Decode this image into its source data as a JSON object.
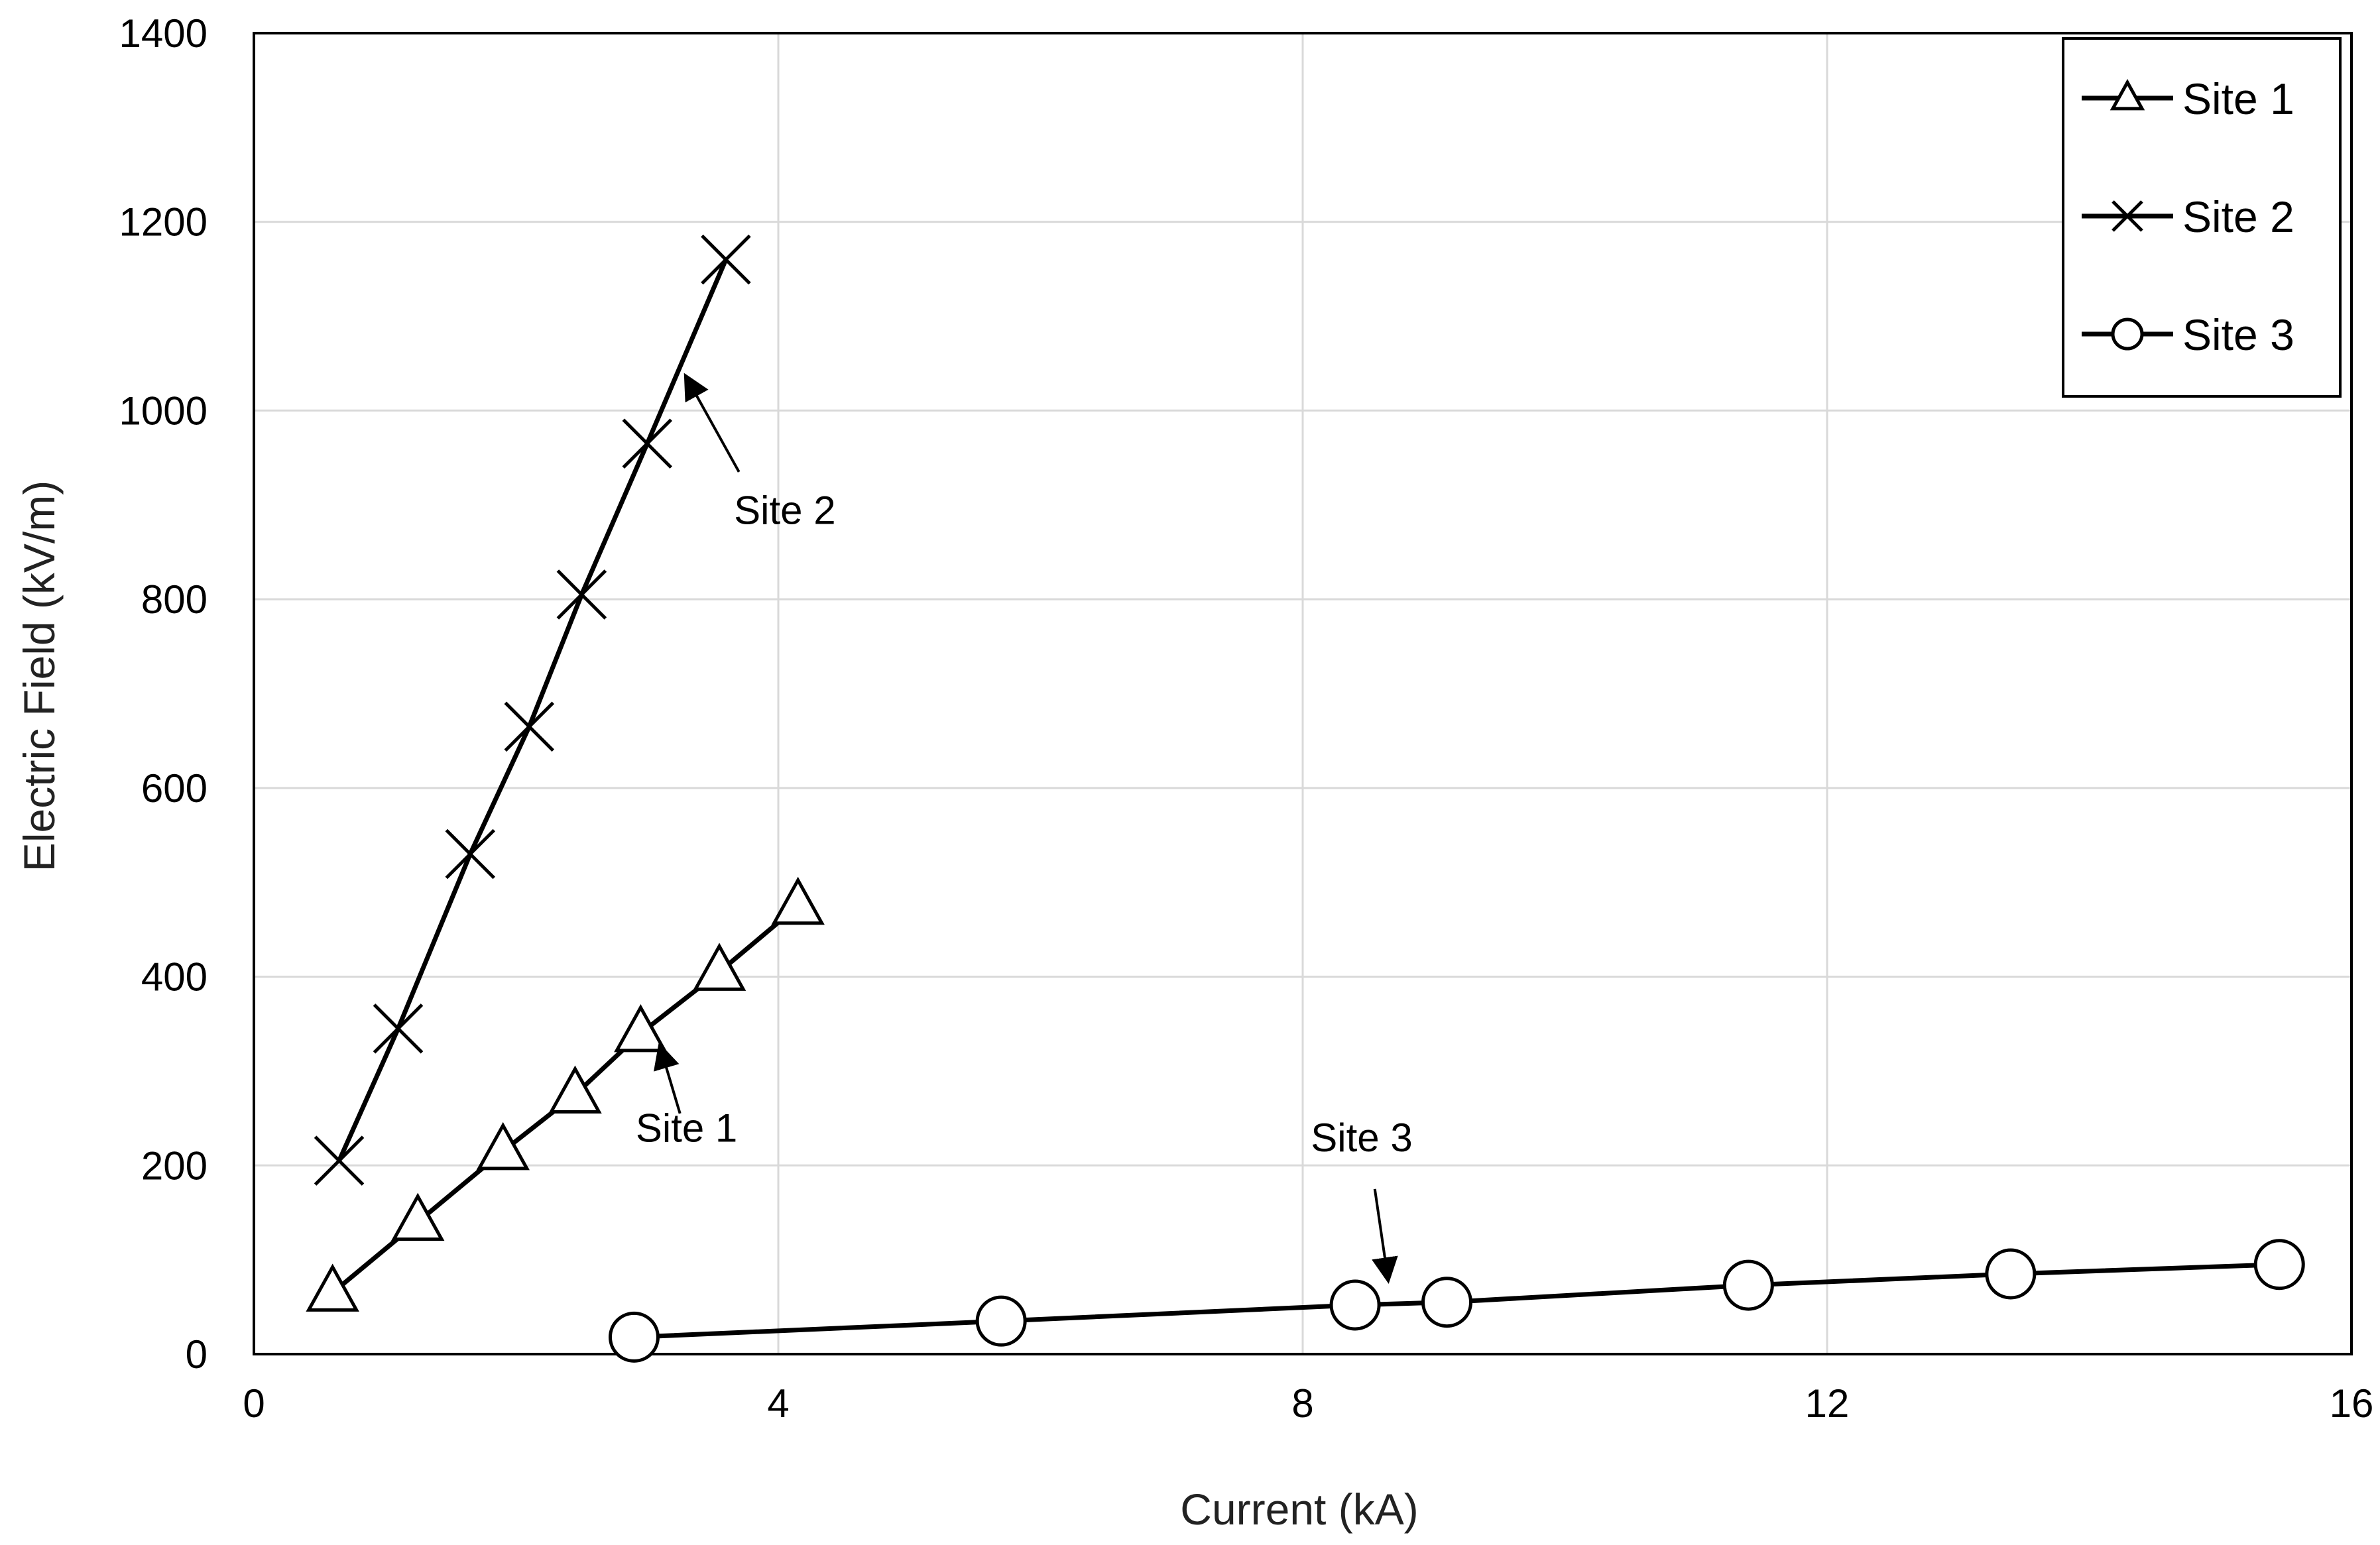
{
  "chart_data": {
    "type": "line",
    "title": "",
    "xlabel": "Current (kA)",
    "ylabel": "Electric Field (kV/m)",
    "xlim": [
      0,
      16
    ],
    "ylim": [
      0,
      1400
    ],
    "xticks": [
      0,
      4,
      8,
      12,
      16
    ],
    "yticks": [
      0,
      200,
      400,
      600,
      800,
      1000,
      1200,
      1400
    ],
    "grid": true,
    "legend": {
      "placement": "top-right"
    },
    "series": [
      {
        "name": "Site 1",
        "marker": "triangle",
        "x": [
          0.6,
          1.25,
          1.9,
          2.45,
          2.95,
          3.55,
          4.15
        ],
        "y": [
          65,
          140,
          215,
          275,
          340,
          405,
          475
        ]
      },
      {
        "name": "Site 2",
        "marker": "x",
        "x": [
          0.65,
          1.1,
          1.65,
          2.1,
          2.5,
          3.0,
          3.6
        ],
        "y": [
          205,
          345,
          530,
          665,
          805,
          965,
          1160
        ]
      },
      {
        "name": "Site 3",
        "marker": "circle",
        "x": [
          2.9,
          5.7,
          8.4,
          9.1,
          11.4,
          13.4,
          15.45
        ],
        "y": [
          18,
          35,
          52,
          55,
          73,
          85,
          95
        ]
      }
    ],
    "annotations": [
      {
        "text": "Site 2",
        "text_x": 4.05,
        "text_y": 880,
        "arrow_from": [
          3.7,
          935
        ],
        "arrow_to": [
          3.3,
          1035
        ]
      },
      {
        "text": "Site 1",
        "text_x": 3.3,
        "text_y": 225,
        "arrow_from": [
          3.25,
          255
        ],
        "arrow_to": [
          3.1,
          325
        ]
      },
      {
        "text": "Site 3",
        "text_x": 8.45,
        "text_y": 215,
        "arrow_from": [
          8.55,
          175
        ],
        "arrow_to": [
          8.65,
          80
        ]
      }
    ],
    "colors": {
      "line": "#000000",
      "grid": "#d9d9d9",
      "frame": "#000000",
      "background": "#ffffff"
    }
  }
}
